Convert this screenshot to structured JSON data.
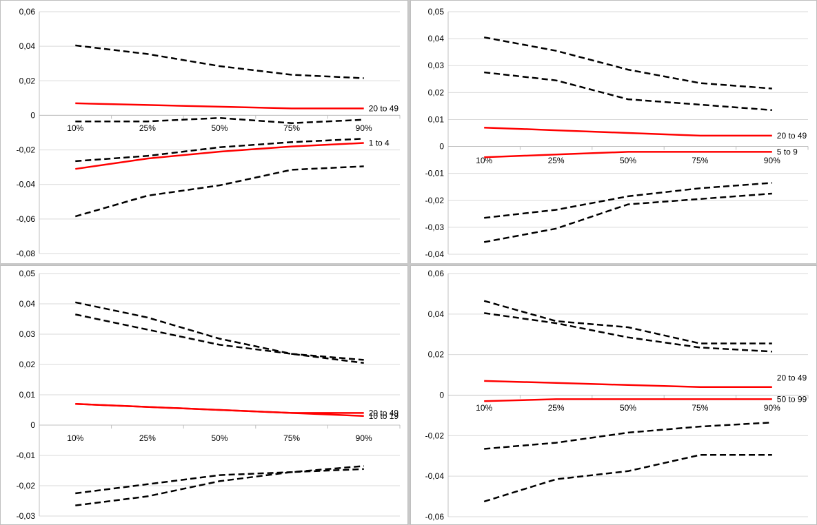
{
  "chart_data": [
    {
      "type": "line",
      "categories": [
        "10%",
        "25%",
        "50%",
        "75%",
        "90%"
      ],
      "ylim": [
        -0.08,
        0.06
      ],
      "yticks": [
        "-0,08",
        "-0,06",
        "-0,04",
        "-0,02",
        "0",
        "0,02",
        "0,04",
        "0,06"
      ],
      "grid": true,
      "series": [
        {
          "name": "20 to 49",
          "style": "solid",
          "values": [
            0.007,
            0.006,
            0.005,
            0.004,
            0.004
          ]
        },
        {
          "name": "1 to 4",
          "style": "solid",
          "values": [
            -0.031,
            -0.025,
            -0.021,
            -0.018,
            -0.016
          ]
        },
        {
          "style": "dashed",
          "values": [
            0.0405,
            0.0355,
            0.0285,
            0.0235,
            0.0215
          ]
        },
        {
          "style": "dashed",
          "values": [
            -0.0035,
            -0.0035,
            -0.0015,
            -0.0045,
            -0.0025
          ]
        },
        {
          "style": "dashed",
          "values": [
            -0.0265,
            -0.0235,
            -0.0185,
            -0.0155,
            -0.0135
          ]
        },
        {
          "style": "dashed",
          "values": [
            -0.0585,
            -0.0465,
            -0.0405,
            -0.0315,
            -0.0295
          ]
        }
      ]
    },
    {
      "type": "line",
      "categories": [
        "10%",
        "25%",
        "50%",
        "75%",
        "90%"
      ],
      "ylim": [
        -0.04,
        0.05
      ],
      "yticks": [
        "-0,04",
        "-0,03",
        "-0,02",
        "-0,01",
        "0",
        "0,01",
        "0,02",
        "0,03",
        "0,04",
        "0,05"
      ],
      "grid": true,
      "series": [
        {
          "name": "20 to 49",
          "style": "solid",
          "values": [
            0.007,
            0.006,
            0.005,
            0.004,
            0.004
          ]
        },
        {
          "name": "5 to 9",
          "style": "solid",
          "values": [
            -0.004,
            -0.003,
            -0.002,
            -0.002,
            -0.002
          ]
        },
        {
          "style": "dashed",
          "values": [
            0.0405,
            0.0355,
            0.0285,
            0.0235,
            0.0215
          ]
        },
        {
          "style": "dashed",
          "values": [
            0.0275,
            0.0245,
            0.0175,
            0.0155,
            0.0135
          ]
        },
        {
          "style": "dashed",
          "values": [
            -0.0265,
            -0.0235,
            -0.0185,
            -0.0155,
            -0.0135
          ]
        },
        {
          "style": "dashed",
          "values": [
            -0.0355,
            -0.0305,
            -0.0215,
            -0.0195,
            -0.0175
          ]
        }
      ]
    },
    {
      "type": "line",
      "categories": [
        "10%",
        "25%",
        "50%",
        "75%",
        "90%"
      ],
      "ylim": [
        -0.03,
        0.05
      ],
      "yticks": [
        "-0,03",
        "-0,02",
        "-0,01",
        "0",
        "0,01",
        "0,02",
        "0,03",
        "0,04",
        "0,05"
      ],
      "grid": true,
      "series": [
        {
          "name": "20 to 49",
          "style": "solid",
          "values": [
            0.007,
            0.006,
            0.005,
            0.004,
            0.004
          ]
        },
        {
          "name": "10 to 19",
          "style": "solid",
          "values": [
            0.007,
            0.006,
            0.005,
            0.004,
            0.003
          ]
        },
        {
          "style": "dashed",
          "values": [
            0.0405,
            0.0355,
            0.0285,
            0.0235,
            0.0215
          ]
        },
        {
          "style": "dashed",
          "values": [
            0.0365,
            0.0315,
            0.0265,
            0.0235,
            0.0205
          ]
        },
        {
          "style": "dashed",
          "values": [
            -0.0225,
            -0.0195,
            -0.0165,
            -0.0155,
            -0.0135
          ]
        },
        {
          "style": "dashed",
          "values": [
            -0.0265,
            -0.0235,
            -0.0185,
            -0.0155,
            -0.0145
          ]
        }
      ]
    },
    {
      "type": "line",
      "categories": [
        "10%",
        "25%",
        "50%",
        "75%",
        "90%"
      ],
      "ylim": [
        -0.06,
        0.06
      ],
      "yticks": [
        "-0,06",
        "-0,04",
        "-0,02",
        "0",
        "0,02",
        "0,04",
        "0,06"
      ],
      "grid": true,
      "series": [
        {
          "name": "20 to 49",
          "style": "solid",
          "values": [
            0.007,
            0.006,
            0.005,
            0.004,
            0.004
          ]
        },
        {
          "name": "50 to 99",
          "style": "solid",
          "values": [
            -0.003,
            -0.002,
            -0.002,
            -0.002,
            -0.002
          ]
        },
        {
          "style": "dashed",
          "values": [
            0.0465,
            0.0365,
            0.0335,
            0.0255,
            0.0255
          ]
        },
        {
          "style": "dashed",
          "values": [
            0.0405,
            0.0355,
            0.0285,
            0.0235,
            0.0215
          ]
        },
        {
          "style": "dashed",
          "values": [
            -0.0265,
            -0.0235,
            -0.0185,
            -0.0155,
            -0.0135
          ]
        },
        {
          "style": "dashed",
          "values": [
            -0.0525,
            -0.0415,
            -0.0375,
            -0.0295,
            -0.0295
          ]
        }
      ]
    }
  ],
  "colors": {
    "solid": "#ff0000",
    "dashed": "#000000"
  }
}
